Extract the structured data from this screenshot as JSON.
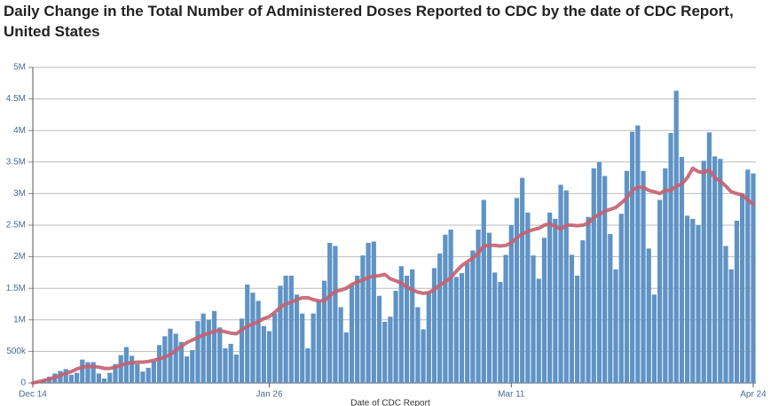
{
  "chart_data": {
    "type": "bar",
    "title": "Daily Change in the Total Number of Administered Doses Reported to CDC by the date of CDC Report,",
    "subtitle": "United States",
    "x_label": "Date of CDC Report",
    "categories": [
      "Dec 14",
      null,
      null,
      null,
      null,
      null,
      null,
      null,
      null,
      null,
      null,
      null,
      null,
      null,
      null,
      null,
      null,
      null,
      null,
      null,
      null,
      null,
      null,
      null,
      null,
      null,
      null,
      null,
      null,
      null,
      null,
      null,
      null,
      null,
      null,
      null,
      null,
      null,
      null,
      null,
      null,
      null,
      null,
      "Jan 26",
      null,
      null,
      null,
      null,
      null,
      null,
      null,
      null,
      null,
      null,
      null,
      null,
      null,
      null,
      null,
      null,
      null,
      null,
      null,
      null,
      null,
      null,
      null,
      null,
      null,
      null,
      null,
      null,
      null,
      null,
      null,
      null,
      null,
      null,
      null,
      null,
      null,
      null,
      null,
      null,
      null,
      null,
      null,
      "Mar 11",
      null,
      null,
      null,
      null,
      null,
      null,
      null,
      null,
      null,
      null,
      null,
      null,
      null,
      null,
      null,
      null,
      null,
      null,
      null,
      null,
      null,
      null,
      null,
      null,
      null,
      null,
      null,
      null,
      null,
      null,
      null,
      null,
      null,
      null,
      null,
      null,
      null,
      null,
      null,
      null,
      null,
      null,
      null,
      "Apr 24"
    ],
    "series": [
      {
        "type": "bar",
        "color": "#5f93c6",
        "values": [
          0.01,
          0.02,
          0.05,
          0.1,
          0.15,
          0.19,
          0.22,
          0.13,
          0.16,
          0.37,
          0.33,
          0.33,
          0.15,
          0.07,
          0.16,
          0.3,
          0.44,
          0.57,
          0.43,
          0.3,
          0.18,
          0.24,
          0.35,
          0.6,
          0.74,
          0.86,
          0.78,
          0.65,
          0.42,
          0.52,
          0.98,
          1.1,
          1.0,
          1.14,
          0.88,
          0.55,
          0.62,
          0.45,
          1.02,
          1.56,
          1.43,
          1.3,
          0.9,
          0.82,
          1.1,
          1.54,
          1.7,
          1.7,
          1.4,
          1.1,
          0.55,
          1.1,
          1.3,
          1.62,
          2.22,
          2.17,
          1.2,
          0.8,
          1.55,
          1.7,
          2.02,
          2.22,
          2.24,
          1.38,
          0.97,
          1.05,
          1.46,
          1.85,
          1.7,
          1.8,
          1.2,
          0.85,
          1.45,
          1.82,
          2.05,
          2.35,
          2.43,
          1.68,
          1.74,
          1.9,
          2.1,
          2.43,
          2.9,
          2.38,
          1.75,
          1.6,
          2.03,
          2.5,
          2.93,
          3.25,
          2.7,
          2.02,
          1.65,
          2.3,
          2.7,
          2.6,
          3.14,
          3.05,
          2.03,
          1.7,
          2.26,
          2.63,
          3.4,
          3.5,
          3.28,
          2.36,
          1.8,
          2.68,
          3.36,
          3.98,
          4.08,
          3.36,
          2.13,
          1.4,
          2.9,
          3.4,
          3.96,
          4.63,
          3.58,
          2.65,
          2.6,
          2.5,
          3.52,
          3.97,
          3.59,
          3.55,
          2.17,
          1.8,
          2.57,
          3.0,
          3.38,
          3.32
        ]
      },
      {
        "type": "line",
        "color": "#c4606f",
        "values": [
          0,
          0.02,
          0.04,
          0.06,
          0.09,
          0.12,
          0.15,
          0.18,
          0.22,
          0.25,
          0.26,
          0.26,
          0.25,
          0.23,
          0.23,
          0.25,
          0.28,
          0.31,
          0.32,
          0.33,
          0.33,
          0.34,
          0.36,
          0.38,
          0.41,
          0.45,
          0.52,
          0.58,
          0.64,
          0.68,
          0.72,
          0.76,
          0.79,
          0.82,
          0.83,
          0.81,
          0.79,
          0.78,
          0.84,
          0.9,
          0.93,
          0.97,
          1.02,
          1.05,
          1.12,
          1.2,
          1.25,
          1.28,
          1.32,
          1.35,
          1.35,
          1.32,
          1.3,
          1.3,
          1.38,
          1.45,
          1.47,
          1.5,
          1.56,
          1.6,
          1.63,
          1.67,
          1.69,
          1.7,
          1.72,
          1.65,
          1.62,
          1.58,
          1.52,
          1.47,
          1.44,
          1.42,
          1.43,
          1.48,
          1.55,
          1.6,
          1.67,
          1.77,
          1.86,
          1.92,
          1.98,
          2.06,
          2.17,
          2.18,
          2.18,
          2.17,
          2.18,
          2.22,
          2.3,
          2.36,
          2.4,
          2.43,
          2.45,
          2.5,
          2.52,
          2.48,
          2.44,
          2.5,
          2.5,
          2.49,
          2.5,
          2.53,
          2.62,
          2.67,
          2.72,
          2.75,
          2.78,
          2.85,
          2.93,
          3.05,
          3.1,
          3.1,
          3.05,
          3.03,
          3.0,
          3.05,
          3.05,
          3.12,
          3.15,
          3.25,
          3.4,
          3.35,
          3.33,
          3.38,
          3.25,
          3.2,
          3.12,
          3.03,
          3.0,
          2.98,
          2.9,
          2.83
        ]
      }
    ],
    "ylim": [
      0,
      5
    ],
    "yticks": [
      {
        "value": 0,
        "label": "0"
      },
      {
        "value": 0.5,
        "label": "500k"
      },
      {
        "value": 1,
        "label": "1M"
      },
      {
        "value": 1.5,
        "label": "1.5M"
      },
      {
        "value": 2,
        "label": "2M"
      },
      {
        "value": 2.5,
        "label": "2.5M"
      },
      {
        "value": 3,
        "label": "3M"
      },
      {
        "value": 3.5,
        "label": "3.5M"
      },
      {
        "value": 4,
        "label": "4M"
      },
      {
        "value": 4.5,
        "label": "4.5M"
      },
      {
        "value": 5,
        "label": "5M"
      }
    ],
    "grid": true
  }
}
